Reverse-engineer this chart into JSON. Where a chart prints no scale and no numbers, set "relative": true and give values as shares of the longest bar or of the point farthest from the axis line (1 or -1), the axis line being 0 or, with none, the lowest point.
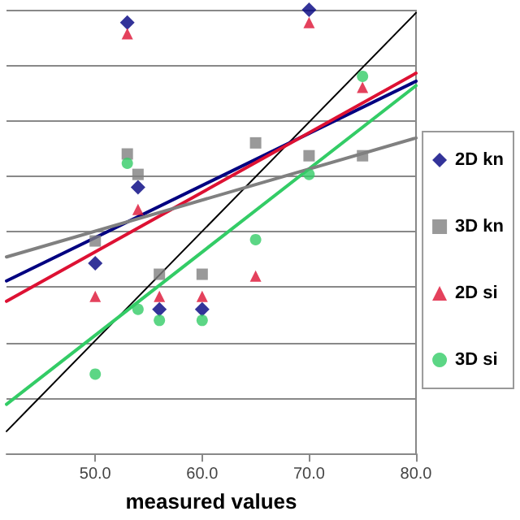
{
  "chart_data": {
    "type": "scatter",
    "relative": true,
    "xlabel": "measured values",
    "xlim": [
      41.7,
      80
    ],
    "xticks": [
      {
        "value": 50,
        "label": "50.0"
      },
      {
        "value": 60,
        "label": "60.0"
      },
      {
        "value": 70,
        "label": "70.0"
      },
      {
        "value": 80,
        "label": "80.0"
      }
    ],
    "grid": "y",
    "legend": "right",
    "series": [
      {
        "name": "2D kn",
        "color": "#000080",
        "marker": "diamond",
        "x": [
          53,
          54,
          70,
          50,
          56,
          60
        ],
        "values": [
          0.971,
          0.6,
          1.0,
          0.429,
          0.325,
          0.325
        ]
      },
      {
        "name": "3D kn",
        "color": "#808080",
        "marker": "square",
        "x": [
          53,
          54,
          65,
          70,
          75,
          50,
          56,
          60
        ],
        "values": [
          0.675,
          0.629,
          0.7,
          0.671,
          0.671,
          0.479,
          0.404,
          0.404
        ]
      },
      {
        "name": "2D si",
        "color": "#dd1133",
        "marker": "triangle",
        "x": [
          53,
          54,
          70,
          75,
          50,
          56,
          60,
          65
        ],
        "values": [
          0.946,
          0.55,
          0.971,
          0.825,
          0.354,
          0.354,
          0.354,
          0.4
        ]
      },
      {
        "name": "3D si",
        "color": "#33cc66",
        "marker": "circle",
        "x": [
          53,
          70,
          75,
          65,
          54,
          56,
          60,
          50
        ],
        "values": [
          0.654,
          0.629,
          0.85,
          0.482,
          0.325,
          0.3,
          0.3,
          0.179
        ]
      },
      {
        "type": "line",
        "color": "#000000",
        "marker": "none",
        "x": [
          41.7,
          80
        ],
        "values": [
          0.05,
          0.993
        ]
      },
      {
        "type": "line",
        "color": "#33cc66",
        "marker": "none",
        "x": [
          41.7,
          80
        ],
        "values": [
          0.111,
          0.829
        ]
      },
      {
        "type": "line",
        "color": "#000080",
        "marker": "none",
        "x": [
          41.7,
          80
        ],
        "values": [
          0.389,
          0.839
        ]
      },
      {
        "type": "line",
        "color": "#dd1133",
        "marker": "none",
        "x": [
          41.7,
          80
        ],
        "values": [
          0.343,
          0.857
        ]
      },
      {
        "type": "line",
        "color": "#808080",
        "marker": "none",
        "x": [
          41.7,
          80
        ],
        "values": [
          0.443,
          0.711
        ]
      }
    ]
  }
}
